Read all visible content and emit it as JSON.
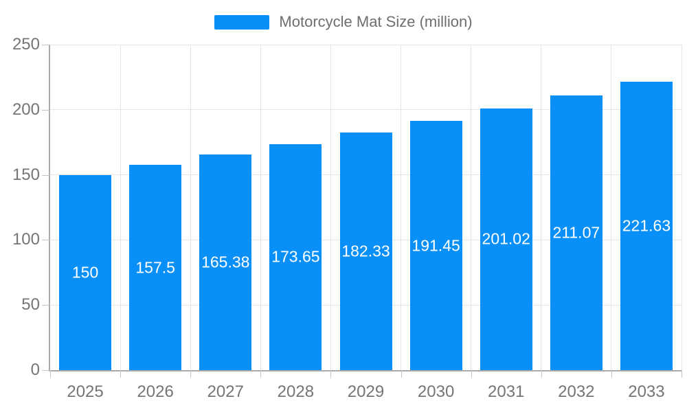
{
  "legend": {
    "label": "Motorcycle Mat Size (million)"
  },
  "chart_data": {
    "type": "bar",
    "title": "Motorcycle Mat Size (million)",
    "categories": [
      "2025",
      "2026",
      "2027",
      "2028",
      "2029",
      "2030",
      "2031",
      "2032",
      "2033"
    ],
    "values": [
      150,
      157.5,
      165.38,
      173.65,
      182.33,
      191.45,
      201.02,
      211.07,
      221.63
    ],
    "value_labels": [
      "150",
      "157.5",
      "165.38",
      "173.65",
      "182.33",
      "191.45",
      "201.02",
      "211.07",
      "221.63"
    ],
    "xlabel": "",
    "ylabel": "",
    "ylim": [
      0,
      250
    ],
    "yticks": [
      0,
      50,
      100,
      150,
      200,
      250
    ],
    "grid": true,
    "legend_position": "top-center",
    "colors": {
      "bar": "#0890F8",
      "value_label": "#ffffff",
      "axis_text": "#757575",
      "legend_text": "#6e6e6e",
      "grid": "#e5e5e5",
      "axis_line": "#aaaaaa",
      "tick": "#c4c4c4"
    }
  }
}
